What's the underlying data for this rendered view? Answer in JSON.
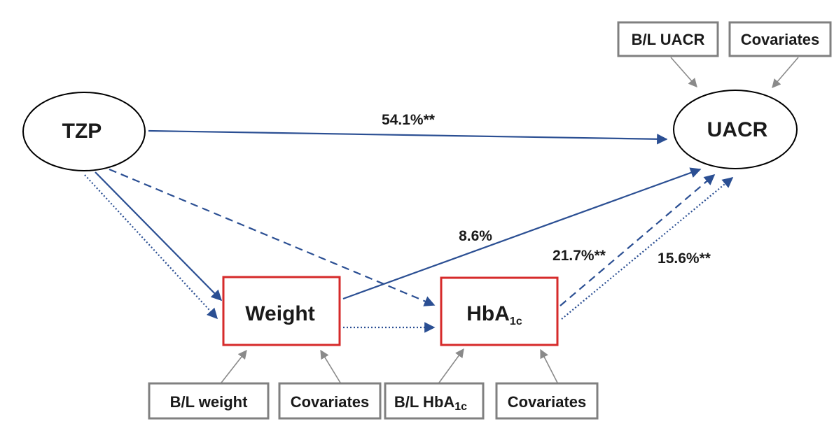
{
  "nodes": {
    "tzp": "TZP",
    "uacr": "UACR",
    "weight": "Weight",
    "hba1c_main": "HbA",
    "hba1c_sub": "1c",
    "bl_uacr": "B/L UACR",
    "covariates_uacr": "Covariates",
    "bl_weight": "B/L weight",
    "covariates_weight": "Covariates",
    "bl_hba1c_main": "B/L HbA",
    "bl_hba1c_sub": "1c",
    "covariates_hba1c": "Covariates"
  },
  "paths": {
    "tzp_uacr": "54.1%**",
    "weight_uacr": "8.6%",
    "hba1c_uacr_dashed": "21.7%**",
    "hba1c_uacr_dotted": "15.6%**"
  },
  "colors": {
    "path": "#2b4f93",
    "mediator_border": "#d62a2a",
    "covariate_border": "#808080",
    "covariate_arrow": "#8a8a8a",
    "text": "#1a1a1a"
  }
}
